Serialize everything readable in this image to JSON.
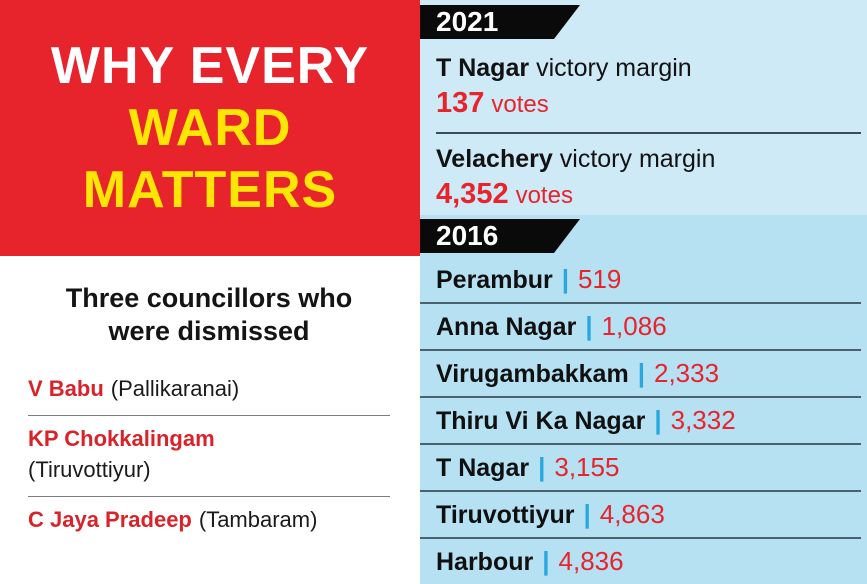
{
  "colors": {
    "red": "#e7232b",
    "yellow": "#fde506",
    "light_blue_top": "#cfeaf7",
    "light_blue_bottom": "#b5e1f3",
    "pipe_blue": "#29a8e0",
    "banner_black": "#0a0a0a",
    "name_red": "#d8232a"
  },
  "left": {
    "headline": [
      "WHY EVERY",
      "WARD",
      "MATTERS"
    ],
    "subheading": "Three councillors who were dismissed",
    "councillors": [
      {
        "name": "V Babu",
        "ward": "(Pallikaranai)"
      },
      {
        "name": "KP Chokkalingam",
        "ward": "(Tiruvottiyur)"
      },
      {
        "name": "C Jaya Pradeep",
        "ward": "(Tambaram)"
      }
    ]
  },
  "right": {
    "s2021": {
      "year": "2021",
      "entries": [
        {
          "place": "T Nagar",
          "label": "victory margin",
          "value": "137",
          "unit": "votes"
        },
        {
          "place": "Velachery",
          "label": "victory margin",
          "value": "4,352",
          "unit": "votes"
        }
      ]
    },
    "s2016": {
      "year": "2016",
      "separator": "|",
      "rows": [
        {
          "place": "Perambur",
          "value": "519"
        },
        {
          "place": "Anna Nagar",
          "value": "1,086"
        },
        {
          "place": "Virugambakkam",
          "value": "2,333"
        },
        {
          "place": "Thiru Vi Ka Nagar",
          "value": "3,332"
        },
        {
          "place": "T Nagar",
          "value": "3,155"
        },
        {
          "place": "Tiruvottiyur",
          "value": "4,863"
        },
        {
          "place": "Harbour",
          "value": "4,836"
        }
      ]
    }
  },
  "chart_data": [
    {
      "type": "table",
      "title": "2021",
      "columns": [
        "ward",
        "victory_margin_votes"
      ],
      "rows": [
        [
          "T Nagar",
          137
        ],
        [
          "Velachery",
          4352
        ]
      ]
    },
    {
      "type": "table",
      "title": "2016",
      "columns": [
        "ward",
        "victory_margin_votes"
      ],
      "rows": [
        [
          "Perambur",
          519
        ],
        [
          "Anna Nagar",
          1086
        ],
        [
          "Virugambakkam",
          2333
        ],
        [
          "Thiru Vi Ka Nagar",
          3332
        ],
        [
          "T Nagar",
          3155
        ],
        [
          "Tiruvottiyur",
          4863
        ],
        [
          "Harbour",
          4836
        ]
      ]
    }
  ]
}
